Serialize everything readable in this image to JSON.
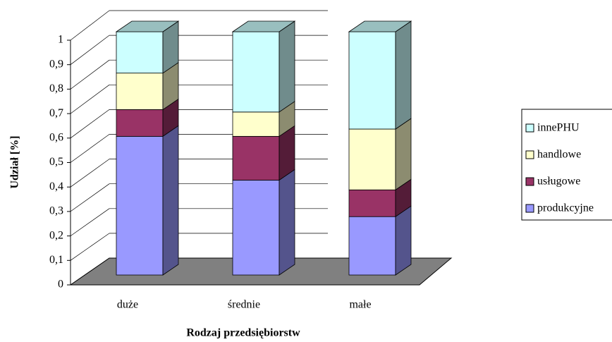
{
  "chart_data": {
    "type": "bar3d_stacked",
    "x_label": "Rodzaj przedsiębiorstw",
    "y_label": "Udział [%]",
    "categories": [
      "duże",
      "średnie",
      "małe"
    ],
    "series": [
      {
        "name": "produkcyjne",
        "color": "#9999ff",
        "values": [
          0.57,
          0.39,
          0.24
        ]
      },
      {
        "name": "usługowe",
        "color": "#993366",
        "values": [
          0.11,
          0.18,
          0.11
        ]
      },
      {
        "name": "handlowe",
        "color": "#ffffcc",
        "values": [
          0.15,
          0.1,
          0.25
        ]
      },
      {
        "name": "innePHU",
        "color": "#ccffff",
        "values": [
          0.17,
          0.33,
          0.4
        ]
      }
    ],
    "ylim": [
      0,
      1
    ],
    "yticks": [
      0,
      {
        "value": 0.1,
        "label": "0,1"
      },
      {
        "value": 0.2,
        "label": "0,2"
      },
      {
        "value": 0.3,
        "label": "0,3"
      },
      {
        "value": 0.4,
        "label": "0,4"
      },
      {
        "value": 0.5,
        "label": "0,5"
      },
      {
        "value": 0.6,
        "label": "0,6"
      },
      {
        "value": 0.7,
        "label": "0,7"
      },
      {
        "value": 0.8,
        "label": "0,8"
      },
      {
        "value": 0.9,
        "label": "0,9"
      },
      1
    ],
    "grid": true
  }
}
